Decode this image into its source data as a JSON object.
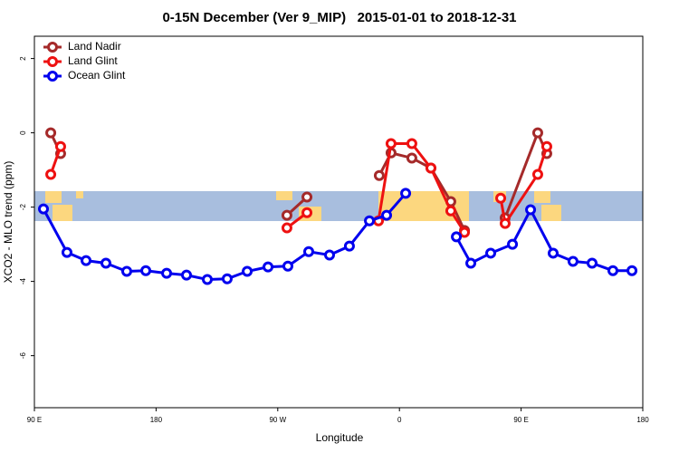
{
  "chart_data": {
    "type": "line",
    "title": "0-15N December (Ver 9_MIP)   2015-01-01 to 2018-12-31",
    "xlabel": "Longitude",
    "ylabel": "XCO2 - MLO trend (ppm)",
    "xlim": [
      90,
      540
    ],
    "ylim": [
      -7.4,
      2.6
    ],
    "xticks": [
      {
        "value": 90,
        "label": "90 E"
      },
      180,
      {
        "value": 270,
        "label": "90 W"
      },
      {
        "value": 360,
        "label": "0"
      },
      {
        "value": 450,
        "label": "90 E"
      },
      {
        "value": 540,
        "label": "180"
      }
    ],
    "yticks": [
      2,
      0,
      -2,
      -4,
      -6
    ],
    "legend": "top-left",
    "series": [
      {
        "name": "Land Nadir",
        "color": "#a52a2a",
        "x": [
          102.1,
          109.4,
          null,
          276.8,
          291.6,
          null,
          345.1,
          353.8,
          369.2,
          383.3,
          398.0,
          408.1,
          null,
          438.2,
          462.3,
          469.0
        ],
        "values": [
          0,
          -0.56,
          null,
          -2.22,
          -1.73,
          null,
          -1.15,
          -0.54,
          -0.68,
          -0.95,
          -1.85,
          -2.63,
          null,
          -2.29,
          0,
          -0.56
        ]
      },
      {
        "name": "Land Glint",
        "color": "#ee1111",
        "x": [
          102.1,
          109.4,
          null,
          276.8,
          291.6,
          null,
          344.5,
          353.8,
          369.2,
          383.3,
          398.0,
          408.1,
          null,
          434.9,
          438.2,
          462.3,
          469.0
        ],
        "values": [
          -1.12,
          -0.37,
          null,
          -2.56,
          -2.15,
          null,
          -2.37,
          -0.29,
          -0.29,
          -0.95,
          -2.1,
          -2.68,
          null,
          -1.76,
          -2.44,
          -1.12,
          -0.37
        ]
      },
      {
        "name": "Ocean Glint",
        "color": "#0000ee",
        "x": [
          96.7,
          114.1,
          128.2,
          142.9,
          158.3,
          172.4,
          187.8,
          202.5,
          217.9,
          232.6,
          247.4,
          262.8,
          277.5,
          292.9,
          308.3,
          323.0,
          337.8,
          350.5,
          364.6,
          null,
          402.1,
          412.8,
          427.5,
          443.6,
          457.0,
          473.7,
          488.4,
          502.5,
          517.9,
          532.0
        ],
        "values": [
          -2.05,
          -3.22,
          -3.44,
          -3.51,
          -3.73,
          -3.71,
          -3.78,
          -3.83,
          -3.95,
          -3.93,
          -3.73,
          -3.61,
          -3.59,
          -3.2,
          -3.29,
          -3.05,
          -2.37,
          -2.22,
          -1.63,
          null,
          -2.8,
          -3.51,
          -3.24,
          -3.0,
          -2.07,
          -3.24,
          -3.46,
          -3.51,
          -3.71,
          -3.71
        ]
      }
    ]
  }
}
